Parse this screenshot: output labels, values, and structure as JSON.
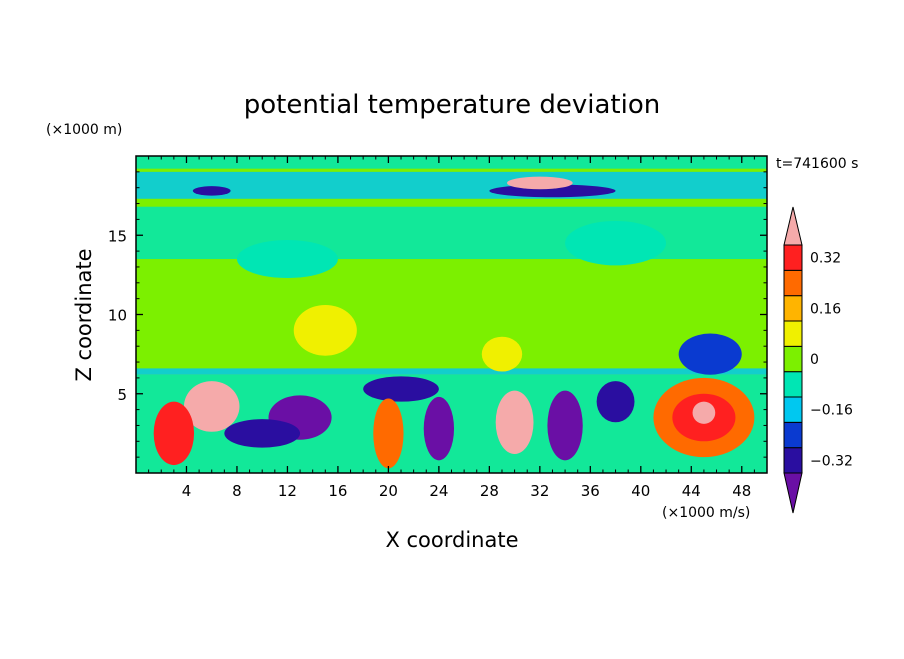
{
  "chart_data": {
    "type": "heatmap",
    "title": "potential temperature deviation",
    "time_label": "t=741600 s",
    "xlabel": "X coordinate",
    "ylabel": "Z coordinate",
    "x_unit": "(×1000 m/s)",
    "y_unit": "(×1000 m)",
    "xlim": [
      0,
      50
    ],
    "ylim": [
      0,
      20
    ],
    "x_ticks": [
      4,
      8,
      12,
      16,
      20,
      24,
      28,
      32,
      36,
      40,
      44,
      48
    ],
    "y_ticks": [
      5,
      10,
      15
    ],
    "colorbar": {
      "levels": [
        -0.4,
        -0.32,
        -0.24,
        -0.16,
        -0.08,
        0,
        0.08,
        0.16,
        0.24,
        0.32,
        0.4
      ],
      "colors": [
        "#6a0fa5",
        "#2a0ea0",
        "#0a3ad0",
        "#00c8f0",
        "#00e6b4",
        "#7cf000",
        "#f0f000",
        "#ffb400",
        "#ff6a00",
        "#ff2020",
        "#f5aaaa"
      ],
      "tick_labels": [
        "0.32",
        "0.16",
        "0",
        "−0.16",
        "−0.32"
      ],
      "tick_values": [
        0.32,
        0.16,
        0,
        -0.16,
        -0.32
      ]
    },
    "features": [
      {
        "x": 6,
        "z": 4.2,
        "rx": 2.2,
        "rz": 1.6,
        "value": 0.4
      },
      {
        "x": 3,
        "z": 2.5,
        "rx": 1.6,
        "rz": 2.0,
        "value": 0.32
      },
      {
        "x": 13,
        "z": 3.5,
        "rx": 2.5,
        "rz": 1.4,
        "value": -0.4
      },
      {
        "x": 10,
        "z": 2.5,
        "rx": 3.0,
        "rz": 0.9,
        "value": -0.32
      },
      {
        "x": 21,
        "z": 5.3,
        "rx": 3.0,
        "rz": 0.8,
        "value": -0.32
      },
      {
        "x": 20,
        "z": 2.5,
        "rx": 1.2,
        "rz": 2.2,
        "value": 0.24
      },
      {
        "x": 24,
        "z": 2.8,
        "rx": 1.2,
        "rz": 2.0,
        "value": -0.4
      },
      {
        "x": 30,
        "z": 3.2,
        "rx": 1.5,
        "rz": 2.0,
        "value": 0.4
      },
      {
        "x": 34,
        "z": 3.0,
        "rx": 1.4,
        "rz": 2.2,
        "value": -0.4
      },
      {
        "x": 38,
        "z": 4.5,
        "rx": 1.5,
        "rz": 1.3,
        "value": -0.32
      },
      {
        "x": 45,
        "z": 3.5,
        "rx": 4.0,
        "rz": 2.5,
        "value": 0.24
      },
      {
        "x": 45,
        "z": 3.5,
        "rx": 2.5,
        "rz": 1.5,
        "value": 0.32
      },
      {
        "x": 45,
        "z": 3.8,
        "rx": 0.9,
        "rz": 0.7,
        "value": 0.4
      },
      {
        "x": 45.5,
        "z": 7.5,
        "rx": 2.5,
        "rz": 1.3,
        "value": -0.24
      },
      {
        "x": 15,
        "z": 9.0,
        "rx": 2.5,
        "rz": 1.6,
        "value": 0.08
      },
      {
        "x": 29,
        "z": 7.5,
        "rx": 1.6,
        "rz": 1.1,
        "value": 0.08
      },
      {
        "x": 33,
        "z": 17.8,
        "rx": 5.0,
        "rz": 0.4,
        "value": -0.32
      },
      {
        "x": 32,
        "z": 18.3,
        "rx": 2.6,
        "rz": 0.4,
        "value": 0.4
      },
      {
        "x": 6,
        "z": 17.8,
        "rx": 1.5,
        "rz": 0.3,
        "value": -0.32
      },
      {
        "x": 38,
        "z": 14.5,
        "rx": 4.0,
        "rz": 1.4,
        "value": -0.08
      },
      {
        "x": 12,
        "z": 13.5,
        "rx": 4.0,
        "rz": 1.2,
        "value": -0.08
      }
    ]
  }
}
